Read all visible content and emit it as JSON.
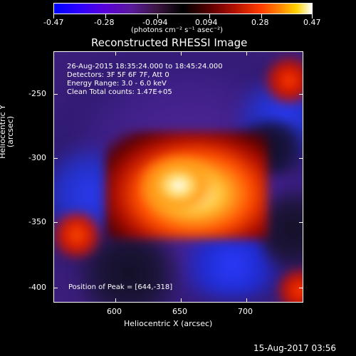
{
  "colorbar": {
    "ticks": [
      "-0.47",
      "-0.28",
      "-0.094",
      "0.094",
      "0.28",
      "0.47"
    ],
    "units_label": "(photons cm⁻² s⁻¹ asec⁻²)"
  },
  "plot": {
    "title": "Reconstructed RHESSI Image",
    "annotations": {
      "time_range": "26-Aug-2015 18:35:24.000 to 18:45:24.000",
      "detectors": "Detectors: 3F 5F 6F 7F, Att 0",
      "energy_range": "Energy Range: 3.0 - 6.0 keV",
      "clean_counts": "Clean     Total counts: 1.47E+05",
      "peak_position": "Position of Peak = [644,-318]"
    },
    "axes": {
      "y_label": "Heliocentric Y (arcsec)",
      "x_label": "Heliocentric X (arcsec)",
      "y_ticks": [
        "-250",
        "-300",
        "-350",
        "-400"
      ],
      "x_ticks": [
        "600",
        "650",
        "700"
      ]
    }
  },
  "footer": {
    "timestamp": "15-Aug-2017 03:56"
  },
  "colors": {
    "background": "#000000",
    "foreground": "#ffffff",
    "low": "#0000ff",
    "high": "#ffffff"
  }
}
